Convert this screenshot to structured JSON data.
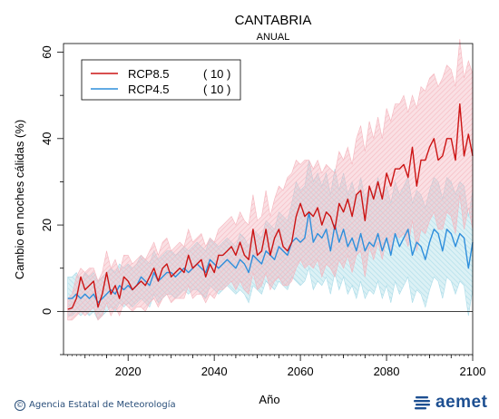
{
  "chart_data": {
    "type": "line",
    "title": "CANTABRIA",
    "subtitle": "ANUAL",
    "xlabel": "Año",
    "ylabel": "Cambio en noches cálidas (%)",
    "xlim": [
      2005,
      2100
    ],
    "ylim": [
      -10,
      62
    ],
    "xticks": [
      2020,
      2040,
      2060,
      2080,
      2100
    ],
    "yticks": [
      0,
      20,
      40,
      60
    ],
    "legend_position": "top-left",
    "series": [
      {
        "name": "RCP8.5",
        "count_label": "( 10 )",
        "color": "#cc1414",
        "band_color": "#f5b5bd",
        "x": [
          2006,
          2007,
          2008,
          2009,
          2010,
          2011,
          2012,
          2013,
          2014,
          2015,
          2016,
          2017,
          2018,
          2019,
          2020,
          2021,
          2022,
          2023,
          2024,
          2025,
          2026,
          2027,
          2028,
          2029,
          2030,
          2031,
          2032,
          2033,
          2034,
          2035,
          2036,
          2037,
          2038,
          2039,
          2040,
          2041,
          2042,
          2043,
          2044,
          2045,
          2046,
          2047,
          2048,
          2049,
          2050,
          2051,
          2052,
          2053,
          2054,
          2055,
          2056,
          2057,
          2058,
          2059,
          2060,
          2061,
          2062,
          2063,
          2064,
          2065,
          2066,
          2067,
          2068,
          2069,
          2070,
          2071,
          2072,
          2073,
          2074,
          2075,
          2076,
          2077,
          2078,
          2079,
          2080,
          2081,
          2082,
          2083,
          2084,
          2085,
          2086,
          2087,
          2088,
          2089,
          2090,
          2091,
          2092,
          2093,
          2094,
          2095,
          2096,
          2097,
          2098,
          2099,
          2100
        ],
        "values": [
          0.5,
          0.8,
          3,
          8,
          5,
          6,
          7,
          1,
          4,
          9,
          4,
          6,
          3,
          8,
          7,
          5,
          6,
          7,
          6,
          8,
          10,
          7,
          10,
          11,
          8,
          9,
          10,
          9,
          13,
          10,
          11,
          12,
          8,
          11,
          9,
          13,
          13,
          14,
          15,
          13,
          16,
          13,
          12,
          19,
          13,
          14,
          19,
          13,
          17,
          19,
          15,
          14,
          16,
          22,
          25,
          22,
          23,
          22,
          24,
          20,
          23,
          22,
          19,
          25,
          23,
          26,
          22,
          27,
          28,
          21,
          29,
          26,
          30,
          26,
          32,
          29,
          33,
          33,
          34,
          31,
          38,
          29,
          35,
          35,
          38,
          40,
          35,
          36,
          40,
          40,
          35,
          48,
          36,
          41,
          36
        ],
        "upper": [
          3,
          4,
          8,
          10,
          9,
          10,
          10,
          7,
          9,
          14,
          10,
          12,
          9,
          13,
          13,
          11,
          12,
          13,
          12,
          14,
          16,
          13,
          16,
          17,
          14,
          15,
          16,
          15,
          19,
          16,
          17,
          18,
          15,
          17,
          16,
          19,
          20,
          21,
          22,
          20,
          23,
          21,
          20,
          27,
          21,
          22,
          28,
          22,
          26,
          29,
          28,
          31,
          32,
          35,
          34,
          35,
          35,
          33,
          35,
          32,
          34,
          33,
          32,
          37,
          35,
          38,
          34,
          40,
          43,
          37,
          44,
          40,
          45,
          40,
          47,
          44,
          48,
          48,
          50,
          46,
          50,
          47,
          52,
          51,
          54,
          55,
          52,
          54,
          57,
          56,
          52,
          63,
          54,
          58,
          55
        ],
        "lower": [
          -2,
          -2,
          -1,
          0,
          -1,
          0,
          1,
          -2,
          -1,
          2,
          -1,
          1,
          -1,
          2,
          1,
          0,
          1,
          1,
          0,
          2,
          3,
          1,
          3,
          4,
          2,
          3,
          3,
          3,
          6,
          3,
          4,
          4,
          2,
          4,
          3,
          5,
          5,
          6,
          7,
          5,
          7,
          5,
          4,
          9,
          5,
          6,
          9,
          5,
          7,
          8,
          6,
          6,
          7,
          10,
          12,
          10,
          11,
          10,
          12,
          8,
          11,
          10,
          8,
          12,
          10,
          13,
          9,
          13,
          14,
          8,
          15,
          12,
          16,
          12,
          17,
          14,
          18,
          17,
          18,
          15,
          21,
          14,
          19,
          18,
          21,
          23,
          19,
          19,
          23,
          22,
          18,
          27,
          19,
          24,
          19
        ]
      },
      {
        "name": "RCP4.5",
        "count_label": "( 10 )",
        "color": "#2f8fdc",
        "band_color": "#a9dbe8",
        "x": [
          2006,
          2007,
          2008,
          2009,
          2010,
          2011,
          2012,
          2013,
          2014,
          2015,
          2016,
          2017,
          2018,
          2019,
          2020,
          2021,
          2022,
          2023,
          2024,
          2025,
          2026,
          2027,
          2028,
          2029,
          2030,
          2031,
          2032,
          2033,
          2034,
          2035,
          2036,
          2037,
          2038,
          2039,
          2040,
          2041,
          2042,
          2043,
          2044,
          2045,
          2046,
          2047,
          2048,
          2049,
          2050,
          2051,
          2052,
          2053,
          2054,
          2055,
          2056,
          2057,
          2058,
          2059,
          2060,
          2061,
          2062,
          2063,
          2064,
          2065,
          2066,
          2067,
          2068,
          2069,
          2070,
          2071,
          2072,
          2073,
          2074,
          2075,
          2076,
          2077,
          2078,
          2079,
          2080,
          2081,
          2082,
          2083,
          2084,
          2085,
          2086,
          2087,
          2088,
          2089,
          2090,
          2091,
          2092,
          2093,
          2094,
          2095,
          2096,
          2097,
          2098,
          2099,
          2100
        ],
        "values": [
          3,
          3,
          4,
          3,
          4,
          3,
          4,
          2,
          3,
          4,
          5,
          4,
          6,
          5,
          6,
          5,
          6,
          8,
          7,
          6,
          9,
          7,
          8,
          9,
          9,
          8,
          9,
          10,
          9,
          10,
          11,
          10,
          9,
          12,
          11,
          10,
          11,
          12,
          11,
          10,
          12,
          11,
          9,
          13,
          12,
          11,
          14,
          13,
          12,
          15,
          14,
          13,
          16,
          17,
          16,
          17,
          23,
          16,
          18,
          17,
          19,
          14,
          20,
          16,
          19,
          15,
          17,
          14,
          18,
          14,
          16,
          15,
          18,
          14,
          17,
          13,
          18,
          15,
          17,
          19,
          13,
          16,
          15,
          12,
          16,
          19,
          18,
          14,
          19,
          18,
          15,
          18,
          17,
          10,
          16
        ],
        "upper": [
          8,
          8,
          9,
          7,
          9,
          8,
          9,
          7,
          8,
          9,
          10,
          9,
          11,
          10,
          11,
          10,
          11,
          13,
          12,
          11,
          14,
          12,
          13,
          14,
          14,
          13,
          14,
          15,
          14,
          15,
          16,
          15,
          14,
          17,
          16,
          15,
          16,
          17,
          16,
          15,
          18,
          17,
          15,
          19,
          18,
          17,
          21,
          20,
          19,
          23,
          22,
          21,
          25,
          30,
          28,
          29,
          35,
          30,
          32,
          29,
          32,
          27,
          33,
          28,
          32,
          27,
          30,
          26,
          31,
          26,
          29,
          27,
          31,
          26,
          29,
          25,
          30,
          27,
          29,
          31,
          25,
          28,
          27,
          24,
          28,
          31,
          30,
          26,
          31,
          30,
          27,
          30,
          29,
          22,
          28
        ],
        "lower": [
          -1,
          -1,
          0,
          -1,
          0,
          -1,
          0,
          -2,
          -1,
          0,
          1,
          0,
          2,
          1,
          2,
          1,
          2,
          3,
          2,
          1,
          4,
          2,
          3,
          4,
          4,
          3,
          4,
          5,
          4,
          5,
          5,
          4,
          3,
          6,
          5,
          4,
          5,
          6,
          5,
          4,
          5,
          4,
          2,
          6,
          5,
          4,
          7,
          6,
          5,
          7,
          6,
          5,
          8,
          7,
          6,
          7,
          10,
          5,
          7,
          6,
          8,
          4,
          9,
          5,
          8,
          4,
          6,
          3,
          7,
          3,
          5,
          4,
          7,
          3,
          6,
          2,
          7,
          4,
          6,
          8,
          2,
          5,
          4,
          1,
          5,
          8,
          7,
          3,
          8,
          7,
          4,
          7,
          6,
          -1,
          5
        ]
      }
    ]
  },
  "footer": {
    "credit": "Agencia Estatal de Meteorología",
    "copyright_symbol": "©",
    "logo_text": "aemet"
  }
}
